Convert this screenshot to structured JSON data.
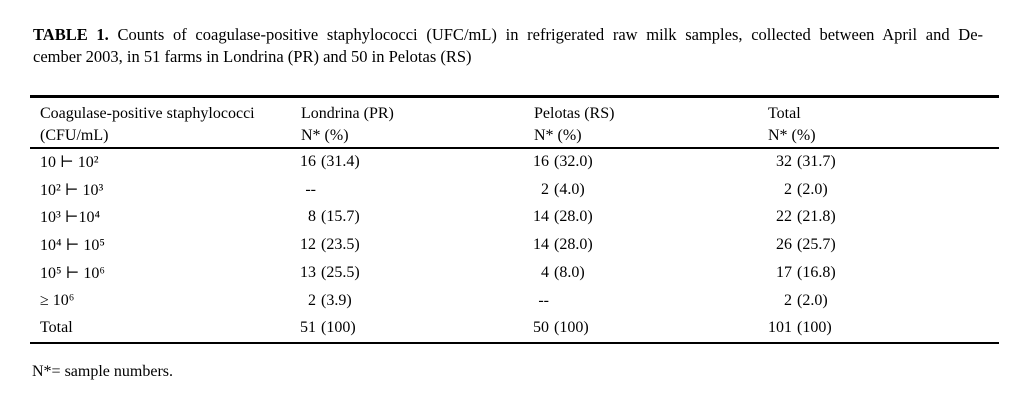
{
  "caption": {
    "label": "TABLE 1.",
    "line1_rest": "Counts of coagulase-positive staphylococci (UFC/mL) in refrigerated raw milk samples, collected between April and De-",
    "line2": "cember 2003, in 51 farms in Londrina (PR) and 50 in Pelotas (RS)"
  },
  "table": {
    "columns": [
      {
        "line1": "Coagulase-positive staphylococci",
        "line2": "(CFU/mL)"
      },
      {
        "line1": "Londrina (PR)",
        "line2": "N* (%)"
      },
      {
        "line1": "Pelotas (RS)",
        "line2": "N* (%)"
      },
      {
        "line1": "Total",
        "line2": "N* (%)"
      }
    ],
    "rows": [
      {
        "range": "10 ⊢ 10²",
        "londrina": {
          "n": "16",
          "p": "(31.4)"
        },
        "pelotas": {
          "n": "16",
          "p": "(32.0)"
        },
        "total": {
          "n": "32",
          "p": "(31.7)"
        }
      },
      {
        "range": "10² ⊢ 10³",
        "londrina": {
          "n": "--",
          "p": ""
        },
        "pelotas": {
          "n": "2",
          "p": "(4.0)"
        },
        "total": {
          "n": "2",
          "p": "(2.0)"
        }
      },
      {
        "range": "10³ ⊢10⁴",
        "londrina": {
          "n": "8",
          "p": "(15.7)"
        },
        "pelotas": {
          "n": "14",
          "p": "(28.0)"
        },
        "total": {
          "n": "22",
          "p": "(21.8)"
        }
      },
      {
        "range": "10⁴ ⊢ 10⁵",
        "londrina": {
          "n": "12",
          "p": "(23.5)"
        },
        "pelotas": {
          "n": "14",
          "p": "(28.0)"
        },
        "total": {
          "n": "26",
          "p": "(25.7)"
        }
      },
      {
        "range": "10⁵ ⊢ 10⁶",
        "londrina": {
          "n": "13",
          "p": "(25.5)"
        },
        "pelotas": {
          "n": "4",
          "p": "(8.0)"
        },
        "total": {
          "n": "17",
          "p": "(16.8)"
        }
      },
      {
        "range": "≥ 10⁶",
        "londrina": {
          "n": "2",
          "p": "(3.9)"
        },
        "pelotas": {
          "n": "--",
          "p": ""
        },
        "total": {
          "n": "2",
          "p": "(2.0)"
        }
      },
      {
        "range": "Total",
        "londrina": {
          "n": "51",
          "p": "(100)"
        },
        "pelotas": {
          "n": "50",
          "p": "(100)"
        },
        "total": {
          "n": "101",
          "p": "(100)"
        }
      }
    ]
  },
  "footnote": "N*= sample numbers."
}
